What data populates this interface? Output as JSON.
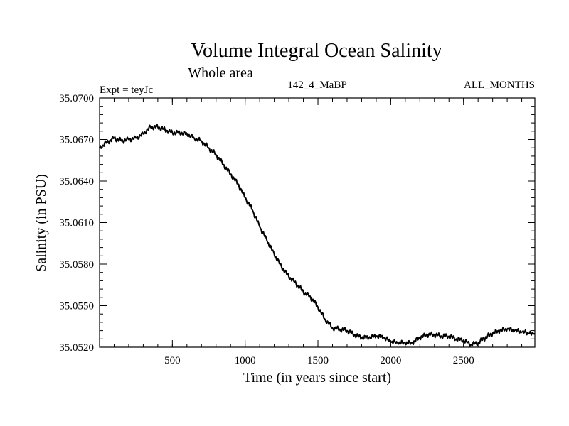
{
  "chart_data": {
    "type": "line",
    "title": "Volume Integral Ocean Salinity",
    "subtitle": "Whole area",
    "annotations": {
      "left": "Expt = teyJc",
      "center": "142_4_MaBP",
      "right": "ALL_MONTHS"
    },
    "xlabel": "Time (in years since start)",
    "ylabel": "Salinity (in PSU)",
    "xlim": [
      0,
      2990
    ],
    "ylim": [
      35.052,
      35.07
    ],
    "x_major_ticks": [
      500,
      1000,
      1500,
      2000,
      2500
    ],
    "x_tick_labels": [
      "500",
      "1000",
      "1500",
      "2000",
      "2500"
    ],
    "x_minor_step": 100,
    "y_major_ticks": [
      35.052,
      35.055,
      35.058,
      35.061,
      35.064,
      35.067,
      35.07
    ],
    "y_tick_labels": [
      "35.0520",
      "35.0550",
      "35.0580",
      "35.0610",
      "35.0640",
      "35.0670",
      "35.0700"
    ],
    "y_minor_step": 0.0006,
    "grid": false,
    "series": [
      {
        "name": "salinity",
        "x": [
          0,
          50,
          100,
          150,
          200,
          250,
          300,
          350,
          400,
          450,
          500,
          550,
          600,
          650,
          700,
          750,
          800,
          850,
          900,
          950,
          1000,
          1050,
          1100,
          1150,
          1200,
          1250,
          1300,
          1350,
          1400,
          1450,
          1500,
          1550,
          1600,
          1650,
          1700,
          1750,
          1800,
          1850,
          1900,
          1950,
          2000,
          2050,
          2100,
          2150,
          2200,
          2250,
          2300,
          2350,
          2400,
          2450,
          2500,
          2550,
          2600,
          2650,
          2700,
          2750,
          2800,
          2850,
          2900,
          2950,
          2990
        ],
        "values": [
          35.0664,
          35.0668,
          35.0671,
          35.0669,
          35.067,
          35.0671,
          35.0674,
          35.0679,
          35.0679,
          35.0677,
          35.0675,
          35.0675,
          35.0674,
          35.0671,
          35.0669,
          35.0664,
          35.0659,
          35.0652,
          35.0645,
          35.0638,
          35.0628,
          35.0619,
          35.0607,
          35.0597,
          35.0587,
          35.0578,
          35.0571,
          35.0566,
          35.056,
          35.0556,
          35.0549,
          35.054,
          35.0534,
          35.0533,
          35.0532,
          35.0529,
          35.0527,
          35.0527,
          35.0528,
          35.0527,
          35.0524,
          35.0523,
          35.0523,
          35.0523,
          35.0527,
          35.0529,
          35.0529,
          35.0528,
          35.0528,
          35.0526,
          35.0525,
          35.0522,
          35.0523,
          35.0527,
          35.053,
          35.0532,
          35.0533,
          35.0532,
          35.0531,
          35.053,
          35.053
        ]
      }
    ]
  }
}
